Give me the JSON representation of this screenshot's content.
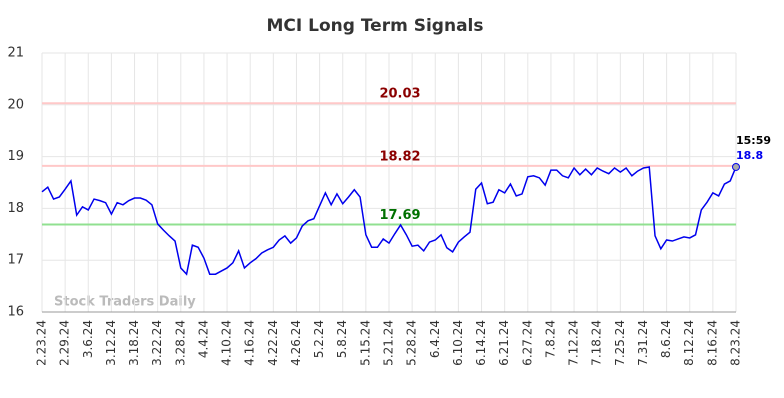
{
  "chart_data": {
    "type": "line",
    "title": "MCI Long Term Signals",
    "categories": [
      "2.23.24",
      null,
      null,
      null,
      "2.29.24",
      null,
      null,
      null,
      "3.6.24",
      null,
      null,
      null,
      "3.12.24",
      null,
      null,
      null,
      "3.18.24",
      null,
      null,
      null,
      "3.22.24",
      null,
      null,
      null,
      "3.28.24",
      null,
      null,
      null,
      "4.4.24",
      null,
      null,
      null,
      "4.10.24",
      null,
      null,
      null,
      "4.16.24",
      null,
      null,
      null,
      "4.22.24",
      null,
      null,
      null,
      "4.26.24",
      null,
      null,
      null,
      "5.2.24",
      null,
      null,
      null,
      "5.8.24",
      null,
      null,
      null,
      "5.15.24",
      null,
      null,
      null,
      "5.21.24",
      null,
      null,
      null,
      "5.28.24",
      null,
      null,
      null,
      "6.4.24",
      null,
      null,
      null,
      "6.10.24",
      null,
      null,
      null,
      "6.14.24",
      null,
      null,
      null,
      "6.21.24",
      null,
      null,
      null,
      "6.27.24",
      null,
      null,
      null,
      "7.8.24",
      null,
      null,
      null,
      "7.12.24",
      null,
      null,
      null,
      "7.18.24",
      null,
      null,
      null,
      "7.25.24",
      null,
      null,
      null,
      "7.31.24",
      null,
      null,
      null,
      "8.6.24",
      null,
      null,
      null,
      "8.12.24",
      null,
      null,
      null,
      "8.16.24",
      null,
      null,
      null,
      "8.23.24"
    ],
    "values": [
      18.32,
      18.41,
      18.18,
      18.22,
      18.37,
      18.53,
      17.87,
      18.03,
      17.97,
      18.18,
      18.15,
      18.11,
      17.89,
      18.11,
      18.07,
      18.15,
      18.2,
      18.2,
      18.16,
      18.07,
      17.7,
      17.58,
      17.47,
      17.37,
      16.85,
      16.73,
      17.29,
      17.25,
      17.04,
      16.73,
      16.73,
      16.79,
      16.85,
      16.95,
      17.18,
      16.85,
      16.95,
      17.03,
      17.14,
      17.2,
      17.25,
      17.39,
      17.47,
      17.33,
      17.43,
      17.66,
      17.76,
      17.8,
      18.05,
      18.3,
      18.07,
      18.28,
      18.09,
      18.22,
      18.36,
      18.22,
      17.49,
      17.25,
      17.25,
      17.41,
      17.33,
      17.51,
      17.68,
      17.49,
      17.27,
      17.29,
      17.18,
      17.35,
      17.39,
      17.49,
      17.24,
      17.16,
      17.35,
      17.45,
      17.54,
      18.37,
      18.49,
      18.09,
      18.12,
      18.36,
      18.3,
      18.47,
      18.24,
      18.28,
      18.61,
      18.63,
      18.59,
      18.45,
      18.74,
      18.74,
      18.63,
      18.59,
      18.78,
      18.65,
      18.76,
      18.65,
      18.78,
      18.72,
      18.67,
      18.78,
      18.7,
      18.78,
      18.63,
      18.72,
      18.78,
      18.8,
      17.47,
      17.22,
      17.39,
      17.37,
      17.41,
      17.45,
      17.43,
      17.49,
      17.97,
      18.12,
      18.3,
      18.24,
      18.47,
      18.53,
      18.8
    ],
    "color": "#0000ee",
    "ylim": [
      16,
      21
    ],
    "yticks": [
      16,
      17,
      18,
      19,
      20,
      21
    ],
    "grid": true,
    "hlines": [
      {
        "value": 20.03,
        "color": "#ffc8c8",
        "label_color": "#8b0000"
      },
      {
        "value": 18.82,
        "color": "#ffc8c8",
        "label_color": "#8b0000"
      },
      {
        "value": 17.69,
        "color": "#90e090",
        "label_color": "#007000"
      }
    ],
    "last_time": "15:59",
    "watermark": "Stock Traders Daily"
  }
}
